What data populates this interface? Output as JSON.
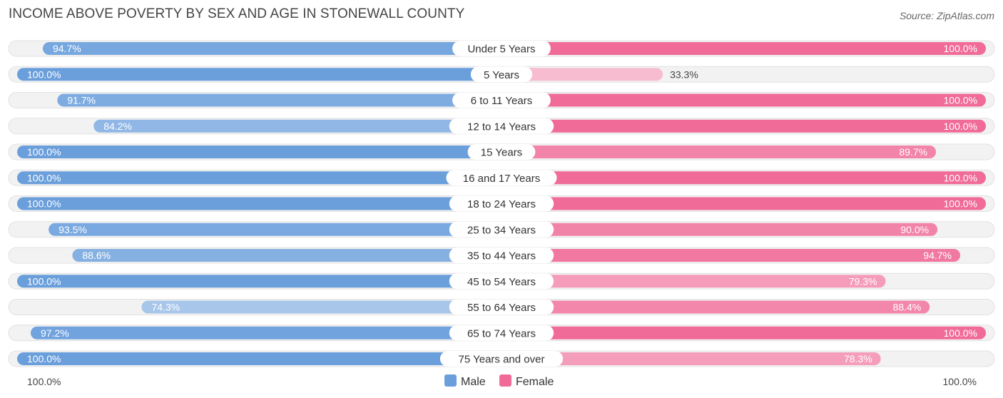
{
  "chart_data": {
    "type": "bar",
    "orientation": "diverging-horizontal",
    "title": "INCOME ABOVE POVERTY BY SEX AND AGE IN STONEWALL COUNTY",
    "source": "Source: ZipAtlas.com",
    "categories": [
      "Under 5 Years",
      "5 Years",
      "6 to 11 Years",
      "12 to 14 Years",
      "15 Years",
      "16 and 17 Years",
      "18 to 24 Years",
      "25 to 34 Years",
      "35 to 44 Years",
      "45 to 54 Years",
      "55 to 64 Years",
      "65 to 74 Years",
      "75 Years and over"
    ],
    "series": [
      {
        "name": "Male",
        "color": "#6a9fdc",
        "values": [
          94.7,
          100.0,
          91.7,
          84.2,
          100.0,
          100.0,
          100.0,
          93.5,
          88.6,
          100.0,
          74.3,
          97.2,
          100.0
        ],
        "labels": [
          "94.7%",
          "100.0%",
          "91.7%",
          "84.2%",
          "100.0%",
          "100.0%",
          "100.0%",
          "93.5%",
          "88.6%",
          "100.0%",
          "74.3%",
          "97.2%",
          "100.0%"
        ]
      },
      {
        "name": "Female",
        "color": "#f06b98",
        "values": [
          100.0,
          33.3,
          100.0,
          100.0,
          89.7,
          100.0,
          100.0,
          90.0,
          94.7,
          79.3,
          88.4,
          100.0,
          78.3
        ],
        "labels": [
          "100.0%",
          "33.3%",
          "100.0%",
          "100.0%",
          "89.7%",
          "100.0%",
          "100.0%",
          "90.0%",
          "94.7%",
          "79.3%",
          "88.4%",
          "100.0%",
          "78.3%"
        ]
      }
    ],
    "xlim": [
      0,
      100
    ],
    "axis_left_label": "100.0%",
    "axis_right_label": "100.0%",
    "legend_position": "bottom-center"
  }
}
